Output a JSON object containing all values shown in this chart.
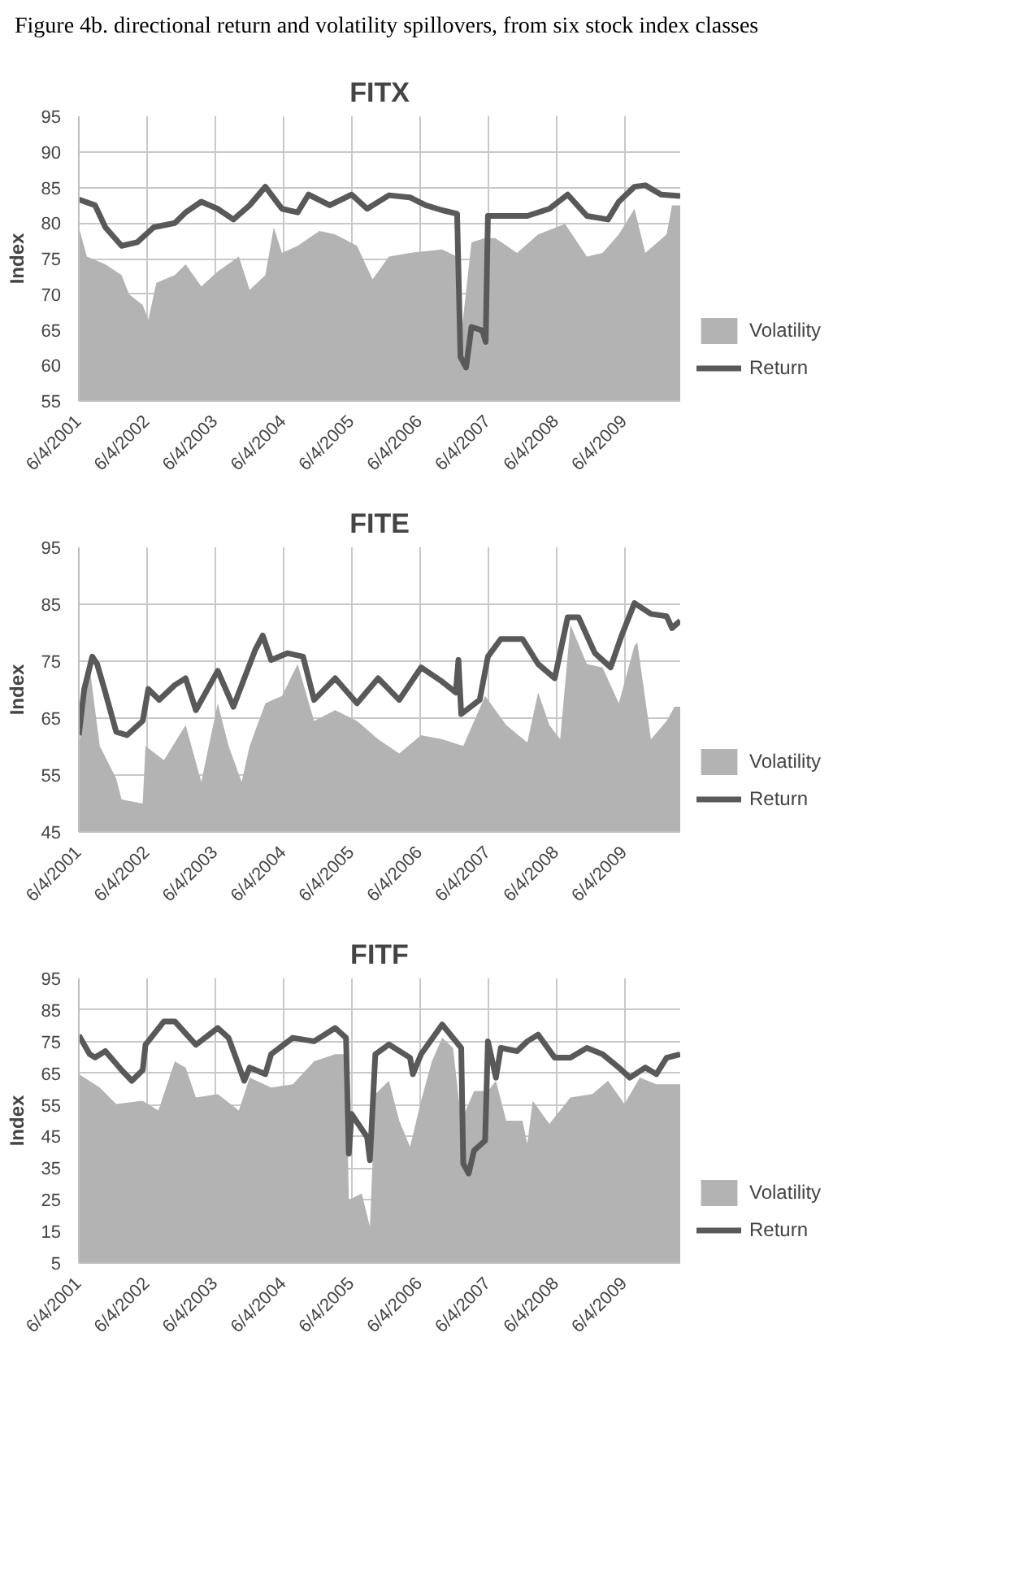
{
  "chart_data": [
    {
      "type": "area",
      "title": "FITX",
      "annotations": [
        "Figure 4b. directional return and volatility spillovers, from six stock index classes"
      ],
      "ylabel": "Index",
      "xlim": [
        "2001-06-04",
        "2010-03-30"
      ],
      "xticks": [
        {
          "value": "2001-06-04",
          "label": "6/4/2001"
        },
        {
          "value": "2002-06-04",
          "label": "6/4/2002"
        },
        {
          "value": "2003-06-04",
          "label": "6/4/2003"
        },
        {
          "value": "2004-06-04",
          "label": "6/4/2004"
        },
        {
          "value": "2005-06-04",
          "label": "6/4/2005"
        },
        {
          "value": "2006-06-04",
          "label": "6/4/2006"
        },
        {
          "value": "2007-06-04",
          "label": "6/4/2007"
        },
        {
          "value": "2008-06-04",
          "label": "6/4/2008"
        },
        {
          "value": "2009-06-04",
          "label": "6/4/2009"
        }
      ],
      "ylim": [
        55,
        95
      ],
      "yticks": [
        55,
        60,
        65,
        70,
        75,
        80,
        85,
        90,
        95
      ],
      "grid": true,
      "legend": "right",
      "series": [
        {
          "name": "Volatility",
          "color": "#b3b3b3",
          "x": [
            "2001-06-04",
            "2001-07-17",
            "2001-10-24",
            "2002-01-19",
            "2002-02-28",
            "2002-05-12",
            "2002-06-11",
            "2002-07-24",
            "2002-10-31",
            "2002-12-28",
            "2003-03-22",
            "2003-06-18",
            "2003-10-09",
            "2003-12-06",
            "2004-02-28",
            "2004-04-13",
            "2004-05-27",
            "2004-08-19",
            "2004-12-14",
            "2005-03-08",
            "2005-07-03",
            "2005-09-24",
            "2005-12-21",
            "2006-04-13",
            "2006-10-02",
            "2006-12-21",
            "2007-01-08",
            "2007-03-08",
            "2007-05-20",
            "2007-07-13",
            "2007-11-07",
            "2008-02-28",
            "2008-07-21",
            "2008-11-15",
            "2009-02-07",
            "2009-05-05",
            "2009-07-28",
            "2009-09-24",
            "2010-01-16",
            "2010-02-14",
            "2010-03-30"
          ],
          "values": [
            79.4,
            75.3,
            74.2,
            72.7,
            70,
            68.5,
            66.4,
            71.6,
            72.7,
            74.2,
            71.1,
            73.2,
            75.3,
            70.6,
            72.7,
            79.4,
            75.8,
            76.8,
            78.9,
            78.4,
            76.8,
            72.1,
            75.3,
            75.8,
            76.3,
            75.3,
            63.3,
            77.3,
            77.9,
            77.9,
            75.8,
            78.4,
            79.9,
            75.3,
            75.8,
            78.4,
            82,
            75.8,
            78.4,
            82.5,
            82.5
          ]
        },
        {
          "name": "Return",
          "type": "line",
          "color": "#595959",
          "x": [
            "2001-06-04",
            "2001-08-30",
            "2001-10-24",
            "2002-01-19",
            "2002-04-13",
            "2002-07-10",
            "2002-10-31",
            "2002-12-28",
            "2003-03-22",
            "2003-06-18",
            "2003-09-10",
            "2003-12-06",
            "2004-02-28",
            "2004-05-27",
            "2004-08-19",
            "2004-10-16",
            "2005-02-07",
            "2005-06-04",
            "2005-08-26",
            "2005-12-21",
            "2006-04-13",
            "2006-07-06",
            "2006-10-02",
            "2006-12-21",
            "2007-01-08",
            "2007-02-07",
            "2007-03-08",
            "2007-05-05",
            "2007-05-23",
            "2007-06-04",
            "2007-09-10",
            "2008-01-01",
            "2008-04-28",
            "2008-08-04",
            "2008-11-15",
            "2009-03-08",
            "2009-05-05",
            "2009-07-28",
            "2009-09-24",
            "2009-12-17",
            "2010-03-30"
          ],
          "values": [
            83.3,
            82.5,
            79.4,
            76.8,
            77.3,
            79.4,
            80,
            81.5,
            83,
            82,
            80.5,
            82.5,
            85.1,
            82,
            81.5,
            84,
            82.5,
            84,
            82,
            83.9,
            83.6,
            82.5,
            81.8,
            81.3,
            61.2,
            59.7,
            65.4,
            64.9,
            63.3,
            81,
            81,
            81,
            82,
            84,
            81,
            80.5,
            83,
            85.1,
            85.3,
            84,
            83.8
          ]
        }
      ]
    },
    {
      "type": "area",
      "title": "FITE",
      "ylabel": "Index",
      "xlim": [
        "2001-06-04",
        "2010-03-30"
      ],
      "xticks": [
        {
          "value": "2001-06-04",
          "label": "6/4/2001"
        },
        {
          "value": "2002-06-04",
          "label": "6/4/2002"
        },
        {
          "value": "2003-06-04",
          "label": "6/4/2003"
        },
        {
          "value": "2004-06-04",
          "label": "6/4/2004"
        },
        {
          "value": "2005-06-04",
          "label": "6/4/2005"
        },
        {
          "value": "2006-06-04",
          "label": "6/4/2006"
        },
        {
          "value": "2007-06-04",
          "label": "6/4/2007"
        },
        {
          "value": "2008-06-04",
          "label": "6/4/2008"
        },
        {
          "value": "2009-06-04",
          "label": "6/4/2009"
        }
      ],
      "ylim": [
        45,
        95
      ],
      "yticks": [
        45,
        55,
        65,
        75,
        85,
        95
      ],
      "grid": true,
      "legend": "right",
      "series": [
        {
          "name": "Volatility",
          "color": "#b3b3b3",
          "x": [
            "2001-06-04",
            "2001-08-01",
            "2001-09-24",
            "2001-12-21",
            "2002-01-19",
            "2002-05-12",
            "2002-05-27",
            "2002-09-03",
            "2002-12-28",
            "2003-03-22",
            "2003-06-18",
            "2003-08-15",
            "2003-10-24",
            "2003-12-06",
            "2004-02-28",
            "2004-05-27",
            "2004-08-19",
            "2004-11-15",
            "2005-03-08",
            "2005-07-03",
            "2005-10-24",
            "2006-02-14",
            "2006-06-11",
            "2006-10-02",
            "2007-01-23",
            "2007-05-20",
            "2007-09-10",
            "2008-01-01",
            "2008-02-28",
            "2008-04-28",
            "2008-06-25",
            "2008-08-19",
            "2008-11-15",
            "2009-02-07",
            "2009-05-05",
            "2009-07-28",
            "2009-08-12",
            "2009-10-24",
            "2010-01-16",
            "2010-02-28",
            "2010-03-30"
          ],
          "values": [
            60.1,
            73.9,
            60.1,
            54.4,
            50.7,
            50,
            60.1,
            57.6,
            63.8,
            53.8,
            67.6,
            60.1,
            53.8,
            60.1,
            67.6,
            68.9,
            74.5,
            64.5,
            66.4,
            64.5,
            61.3,
            58.8,
            62,
            61.3,
            60.1,
            68.9,
            63.8,
            60.7,
            69.5,
            63.8,
            61.3,
            81.4,
            74.5,
            73.9,
            67.6,
            77.7,
            78.3,
            61.3,
            64.5,
            67,
            67
          ]
        },
        {
          "name": "Return",
          "type": "line",
          "color": "#595959",
          "x": [
            "2001-06-04",
            "2001-07-03",
            "2001-08-15",
            "2001-09-10",
            "2001-10-24",
            "2001-12-21",
            "2002-02-17",
            "2002-05-12",
            "2002-06-11",
            "2002-08-08",
            "2002-10-31",
            "2002-12-28",
            "2003-02-21",
            "2003-06-18",
            "2003-09-10",
            "2004-01-05",
            "2004-02-14",
            "2004-03-30",
            "2004-06-25",
            "2004-09-17",
            "2004-11-15",
            "2005-03-08",
            "2005-07-03",
            "2005-10-24",
            "2006-02-14",
            "2006-06-11",
            "2006-10-02",
            "2006-12-14",
            "2006-12-28",
            "2007-01-12",
            "2007-04-21",
            "2007-06-04",
            "2007-08-12",
            "2007-12-06",
            "2008-02-28",
            "2008-05-27",
            "2008-08-04",
            "2008-10-02",
            "2008-12-28",
            "2009-03-22",
            "2009-05-20",
            "2009-07-28",
            "2009-10-24",
            "2010-01-16",
            "2010-02-14",
            "2010-03-30"
          ],
          "values": [
            62,
            70.1,
            75.8,
            74.5,
            69.5,
            62.6,
            62,
            64.5,
            70.1,
            68.2,
            70.8,
            72,
            66.4,
            73.3,
            67,
            77,
            79.5,
            75.2,
            76.4,
            75.8,
            68.2,
            72,
            67.6,
            72,
            68.2,
            73.9,
            71.4,
            69.5,
            75.2,
            65.7,
            68.2,
            75.8,
            78.9,
            78.9,
            74.5,
            72,
            82.7,
            82.7,
            76.4,
            73.9,
            79.5,
            85.2,
            83.3,
            82.9,
            80.8,
            82.1
          ]
        }
      ]
    },
    {
      "type": "area",
      "title": "FITF",
      "ylabel": "Index",
      "xlim": [
        "2001-06-04",
        "2010-03-30"
      ],
      "xticks": [
        {
          "value": "2001-06-04",
          "label": "6/4/2001"
        },
        {
          "value": "2002-06-04",
          "label": "6/4/2002"
        },
        {
          "value": "2003-06-04",
          "label": "6/4/2003"
        },
        {
          "value": "2004-06-04",
          "label": "6/4/2004"
        },
        {
          "value": "2005-06-04",
          "label": "6/4/2005"
        },
        {
          "value": "2006-06-04",
          "label": "6/4/2006"
        },
        {
          "value": "2007-06-04",
          "label": "6/4/2007"
        },
        {
          "value": "2008-06-04",
          "label": "6/4/2008"
        },
        {
          "value": "2009-06-04",
          "label": "6/4/2009"
        }
      ],
      "ylim": [
        5,
        95
      ],
      "yticks": [
        5,
        15,
        25,
        35,
        45,
        55,
        65,
        75,
        85,
        95
      ],
      "grid": true,
      "legend": "right",
      "series": [
        {
          "name": "Volatility",
          "color": "#b3b3b3",
          "x": [
            "2001-06-04",
            "2001-09-24",
            "2001-12-21",
            "2002-05-12",
            "2002-08-04",
            "2002-10-31",
            "2002-12-28",
            "2003-02-21",
            "2003-06-18",
            "2003-10-09",
            "2003-12-06",
            "2004-03-30",
            "2004-07-24",
            "2004-11-15",
            "2005-03-08",
            "2005-05-05",
            "2005-05-20",
            "2005-07-28",
            "2005-09-10",
            "2005-10-09",
            "2005-12-21",
            "2006-02-14",
            "2006-04-13",
            "2006-06-11",
            "2006-08-08",
            "2006-10-02",
            "2006-11-29",
            "2007-01-12",
            "2007-03-22",
            "2007-06-04",
            "2007-07-17",
            "2007-09-10",
            "2007-12-06",
            "2008-01-01",
            "2008-01-30",
            "2008-04-28",
            "2008-08-19",
            "2008-12-14",
            "2009-03-08",
            "2009-06-04",
            "2009-08-26",
            "2009-11-22",
            "2010-03-30"
          ],
          "values": [
            64.7,
            60.5,
            55.3,
            56.3,
            53.2,
            68.8,
            66.8,
            57.3,
            58.4,
            53.2,
            63.6,
            60.5,
            61.5,
            68.8,
            71,
            71,
            24.9,
            27,
            16.5,
            58.4,
            62.6,
            50,
            41.7,
            56.3,
            68.8,
            76.2,
            73,
            50,
            59.4,
            59.4,
            62.6,
            50,
            50,
            42.7,
            56.3,
            49,
            57.3,
            58.4,
            62.6,
            55.3,
            63.6,
            61.5,
            61.5
          ]
        },
        {
          "name": "Return",
          "type": "line",
          "color": "#595959",
          "x": [
            "2001-06-04",
            "2001-08-01",
            "2001-08-30",
            "2001-10-24",
            "2002-01-19",
            "2002-03-15",
            "2002-05-12",
            "2002-05-27",
            "2002-09-03",
            "2002-10-31",
            "2003-02-21",
            "2003-06-18",
            "2003-08-15",
            "2003-11-07",
            "2003-12-06",
            "2004-02-28",
            "2004-03-30",
            "2004-07-24",
            "2004-11-15",
            "2005-03-08",
            "2005-05-05",
            "2005-05-20",
            "2005-06-04",
            "2005-08-26",
            "2005-09-10",
            "2005-10-09",
            "2005-12-21",
            "2006-04-13",
            "2006-04-28",
            "2006-06-11",
            "2006-10-02",
            "2007-01-12",
            "2007-01-23",
            "2007-02-21",
            "2007-03-22",
            "2007-05-20",
            "2007-06-04",
            "2007-07-17",
            "2007-08-12",
            "2007-11-07",
            "2008-01-01",
            "2008-02-28",
            "2008-05-27",
            "2008-08-19",
            "2008-11-15",
            "2009-02-07",
            "2009-05-05",
            "2009-07-03",
            "2009-09-24",
            "2009-11-22",
            "2010-01-16",
            "2010-03-30"
          ],
          "values": [
            77,
            71,
            70,
            72,
            66,
            62.6,
            66,
            74,
            81.4,
            81.4,
            74,
            79.3,
            76.2,
            62.6,
            66.8,
            64.7,
            71,
            76.2,
            75.1,
            79.3,
            76.2,
            39.6,
            52.1,
            44.8,
            37.5,
            71,
            74.1,
            69.9,
            64.7,
            71,
            80.4,
            73,
            36.4,
            33.3,
            40.6,
            43.7,
            75.1,
            63.6,
            73,
            72,
            75.1,
            77.2,
            69.9,
            69.9,
            73,
            71,
            66.8,
            63.6,
            66.8,
            64.7,
            69.9,
            71
          ]
        }
      ]
    }
  ]
}
